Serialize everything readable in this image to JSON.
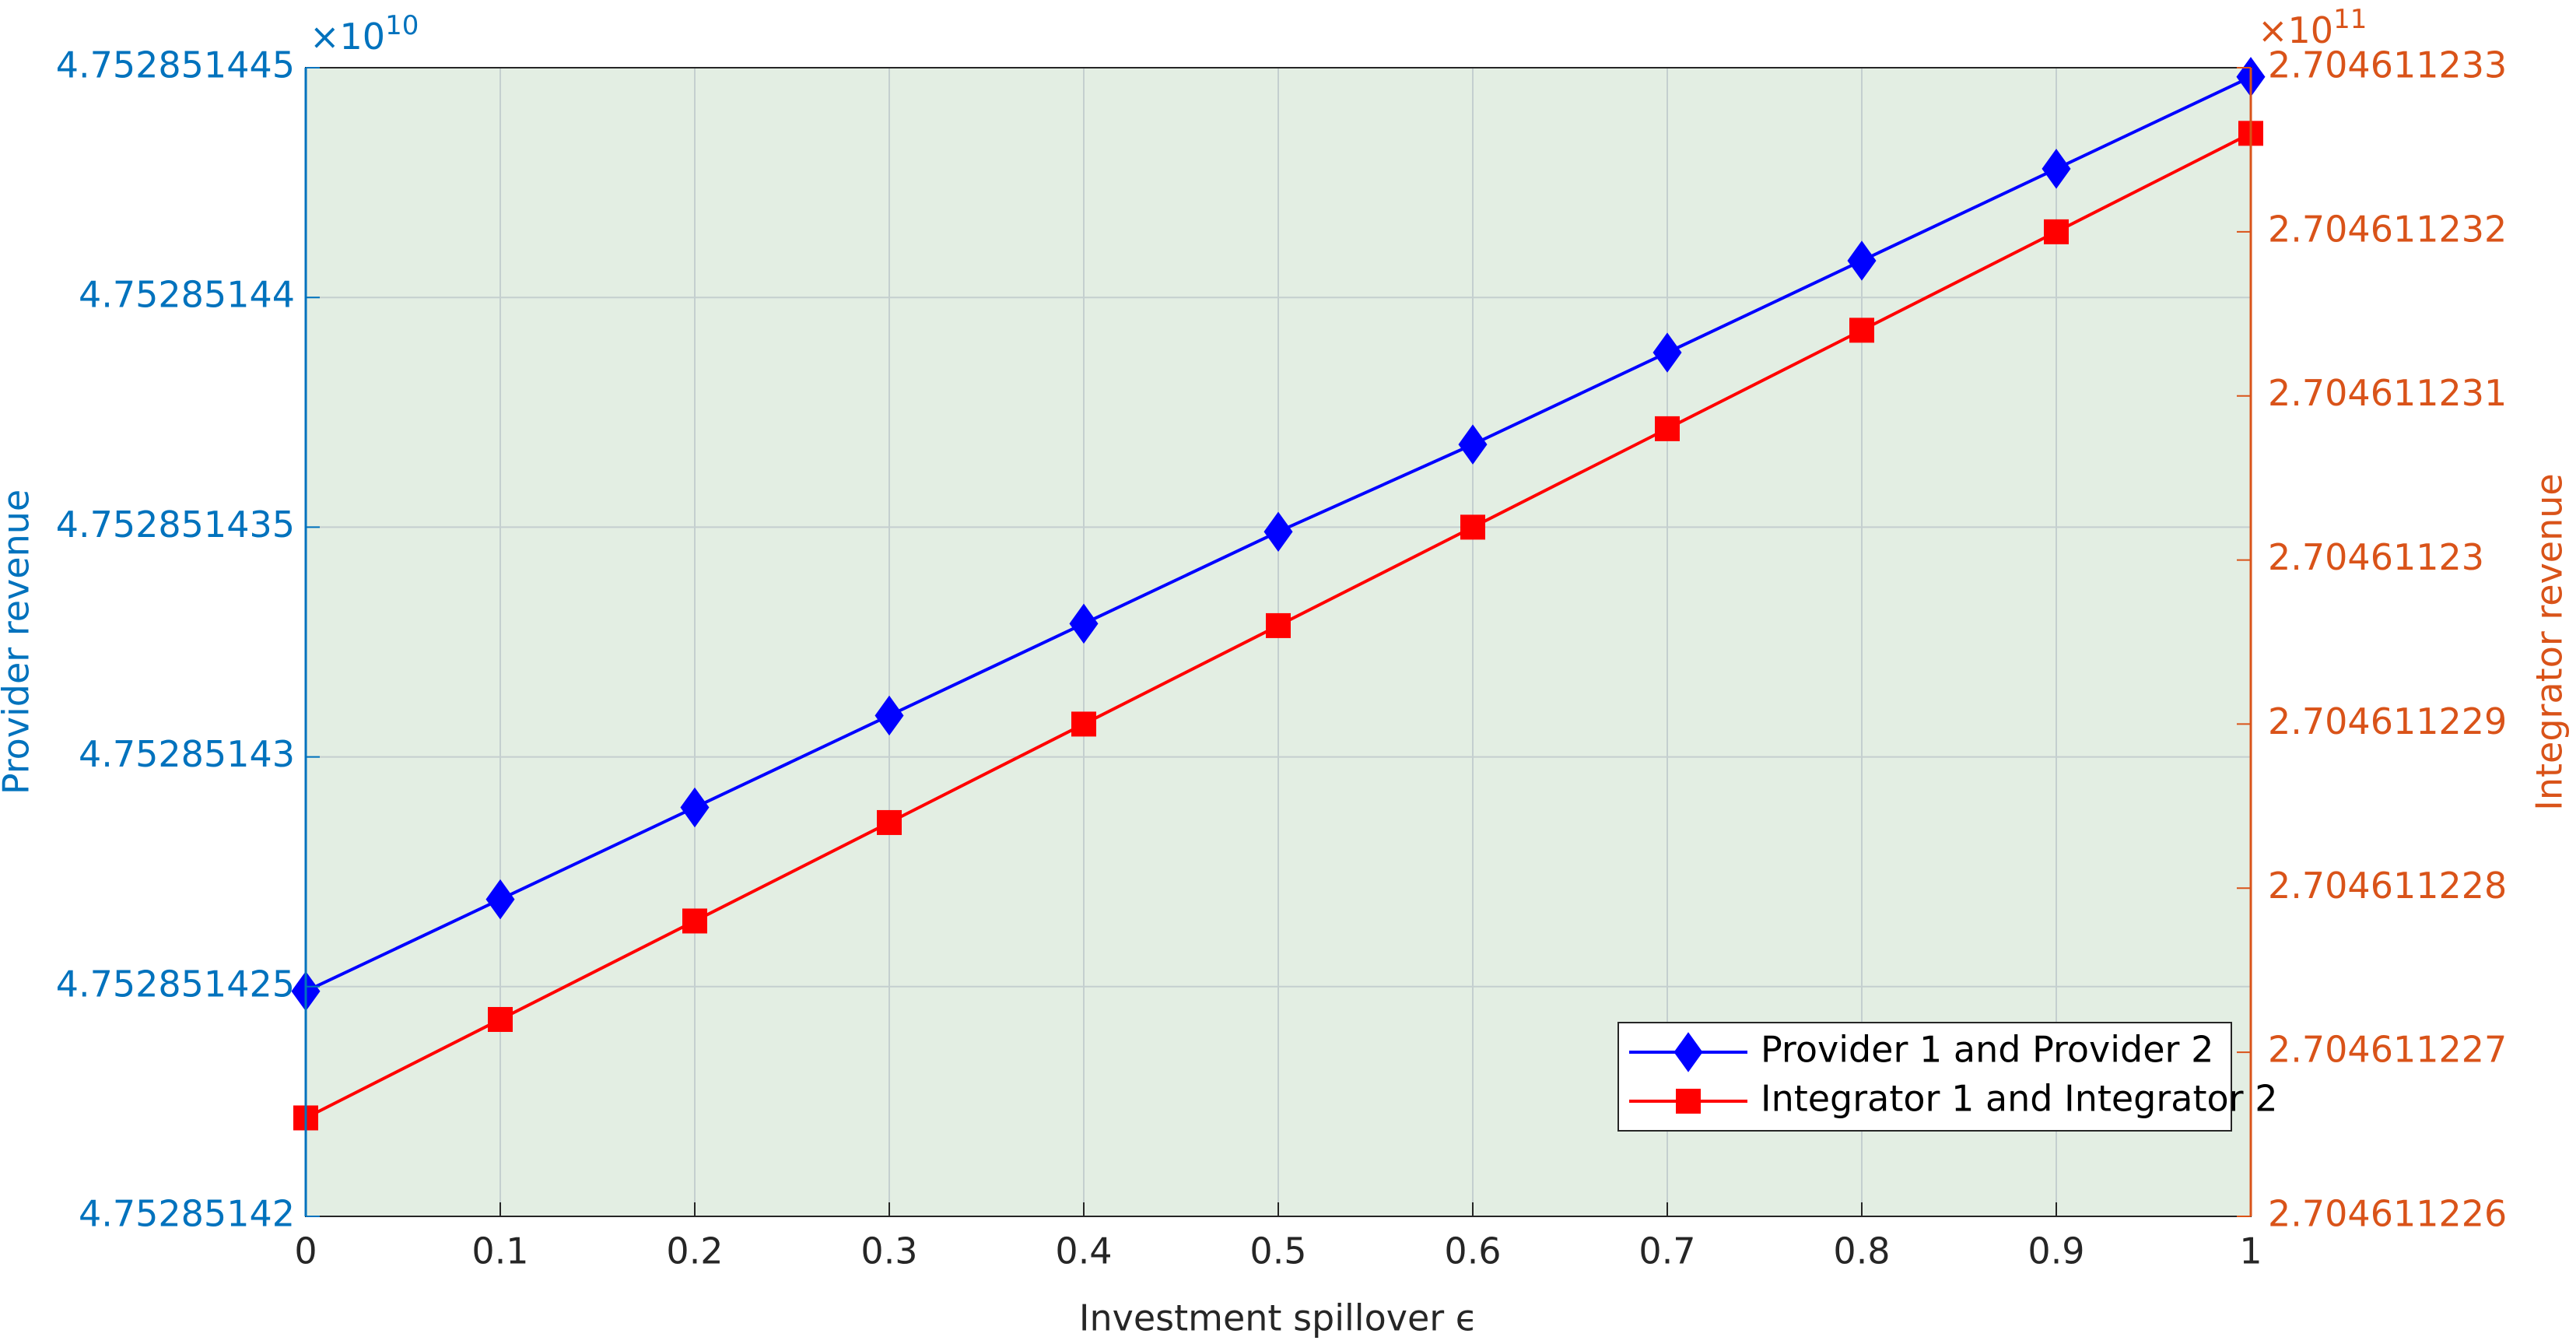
{
  "chart_data": {
    "type": "line",
    "xlabel": "Investment spillover ϵ",
    "ylabel": "Provider revenue",
    "y2label": "Integrator revenue",
    "y_multiplier": {
      "base": "×10",
      "exponent": "10"
    },
    "y2_multiplier": {
      "base": "×10",
      "exponent": "11"
    },
    "x": [
      0,
      0.1,
      0.2,
      0.3,
      0.4,
      0.5,
      0.6,
      0.7,
      0.8,
      0.9,
      1
    ],
    "xlim": [
      0,
      1
    ],
    "xticks": [
      0,
      0.1,
      0.2,
      0.3,
      0.4,
      0.5,
      0.6,
      0.7,
      0.8,
      0.9,
      1
    ],
    "ylim": [
      4.75285142,
      4.752851445
    ],
    "yticks": [
      4.75285142,
      4.752851425,
      4.75285143,
      4.752851435,
      4.75285144,
      4.752851445
    ],
    "y2lim": [
      2.704611226,
      2.704611233
    ],
    "y2ticks": [
      2.704611226,
      2.704611227,
      2.704611228,
      2.704611229,
      2.70461123,
      2.704611231,
      2.704611232,
      2.704611233
    ],
    "grid": true,
    "legend": "southeast",
    "y_color": "#0072bd",
    "y2_color": "#d95319",
    "series": [
      {
        "name": "Provider 1 and Provider 2",
        "color": "#0000ff",
        "marker": "diamond",
        "axis": "y",
        "values": [
          4.7528514249,
          4.7528514269,
          4.7528514289,
          4.7528514309,
          4.7528514329,
          4.7528514349,
          4.7528514368,
          4.7528514388,
          4.7528514408,
          4.7528514428,
          4.7528514448
        ]
      },
      {
        "name": "Integrator 1 and Integrator 2",
        "color": "#ff0000",
        "marker": "square",
        "axis": "y2",
        "values": [
          2.7046112266,
          2.7046112272,
          2.7046112278,
          2.7046112284,
          2.704611229,
          2.7046112296,
          2.7046112302,
          2.7046112308,
          2.7046112314,
          2.704611232,
          2.7046112326
        ]
      }
    ]
  }
}
